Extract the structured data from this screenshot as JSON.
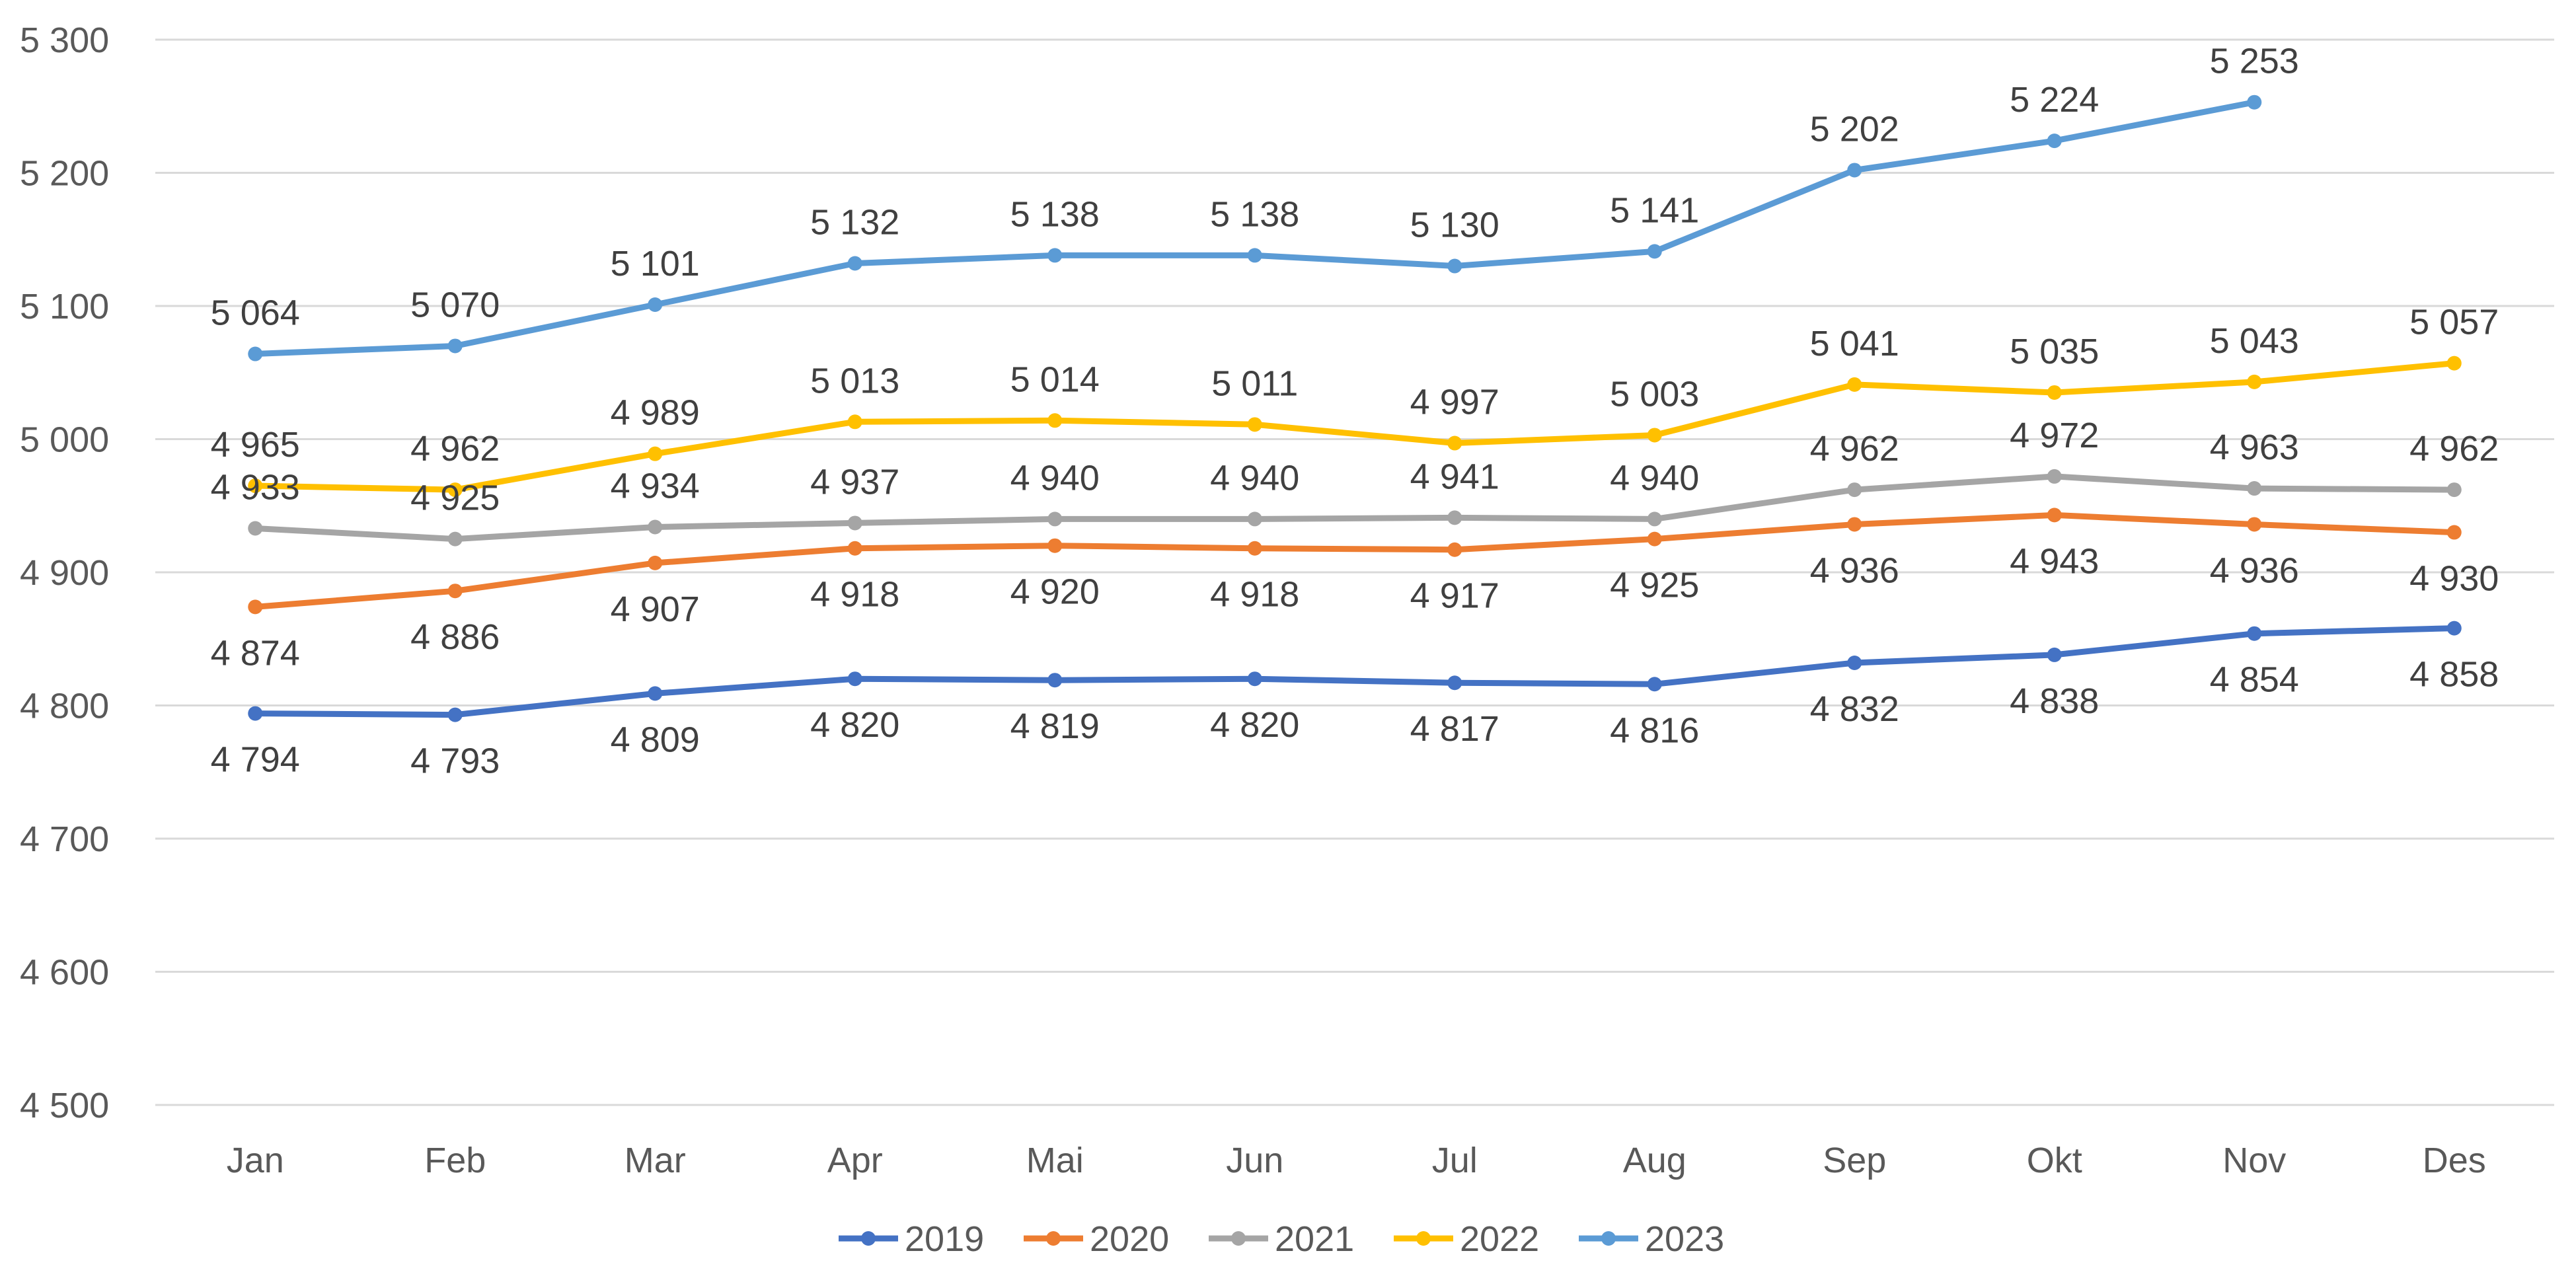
{
  "chart_data": {
    "type": "line",
    "title": "",
    "xlabel": "",
    "ylabel": "",
    "ylim": [
      4500,
      5300
    ],
    "y_ticks": [
      4500,
      4600,
      4700,
      4800,
      4900,
      5000,
      5100,
      5200,
      5300
    ],
    "y_tick_labels": [
      "4 500",
      "4 600",
      "4 700",
      "4 800",
      "4 900",
      "5 000",
      "5 100",
      "5 200",
      "5 300"
    ],
    "categories": [
      "Jan",
      "Feb",
      "Mar",
      "Apr",
      "Mai",
      "Jun",
      "Jul",
      "Aug",
      "Sep",
      "Okt",
      "Nov",
      "Des"
    ],
    "legend_position": "bottom",
    "grid": true,
    "series": [
      {
        "name": "2019",
        "color": "#4472C4",
        "label_pos": "below",
        "values": [
          4794,
          4793,
          4809,
          4820,
          4819,
          4820,
          4817,
          4816,
          4832,
          4838,
          4854,
          4858
        ],
        "labels": [
          "4 794",
          "4 793",
          "4 809",
          "4 820",
          "4 819",
          "4 820",
          "4 817",
          "4 816",
          "4 832",
          "4 838",
          "4 854",
          "4 858"
        ]
      },
      {
        "name": "2020",
        "color": "#ED7D31",
        "label_pos": "below",
        "values": [
          4874,
          4886,
          4907,
          4918,
          4920,
          4918,
          4917,
          4925,
          4936,
          4943,
          4936,
          4930
        ],
        "labels": [
          "4 874",
          "4 886",
          "4 907",
          "4 918",
          "4 920",
          "4 918",
          "4 917",
          "4 925",
          "4 936",
          "4 943",
          "4 936",
          "4 930"
        ]
      },
      {
        "name": "2021",
        "color": "#A5A5A5",
        "label_pos": "above",
        "values": [
          4933,
          4925,
          4934,
          4937,
          4940,
          4940,
          4941,
          4940,
          4962,
          4972,
          4963,
          4962
        ],
        "labels": [
          "4 933",
          "4 925",
          "4 934",
          "4 937",
          "4 940",
          "4 940",
          "4 941",
          "4 940",
          "4 962",
          "4 972",
          "4 963",
          "4 962"
        ]
      },
      {
        "name": "2022",
        "color": "#FFC000",
        "label_pos": "above",
        "values": [
          4965,
          4962,
          4989,
          5013,
          5014,
          5011,
          4997,
          5003,
          5041,
          5035,
          5043,
          5057
        ],
        "labels": [
          "4 965",
          "4 962",
          "4 989",
          "5 013",
          "5 014",
          "5 011",
          "4 997",
          "5 003",
          "5 041",
          "5 035",
          "5 043",
          "5 057"
        ]
      },
      {
        "name": "2023",
        "color": "#5B9BD5",
        "label_pos": "above",
        "values": [
          5064,
          5070,
          5101,
          5132,
          5138,
          5138,
          5130,
          5141,
          5202,
          5224,
          5253,
          null
        ],
        "labels": [
          "5 064",
          "5 070",
          "5 101",
          "5 132",
          "5 138",
          "5 138",
          "5 130",
          "5 141",
          "5 202",
          "5 224",
          "5 253",
          null
        ]
      }
    ]
  }
}
